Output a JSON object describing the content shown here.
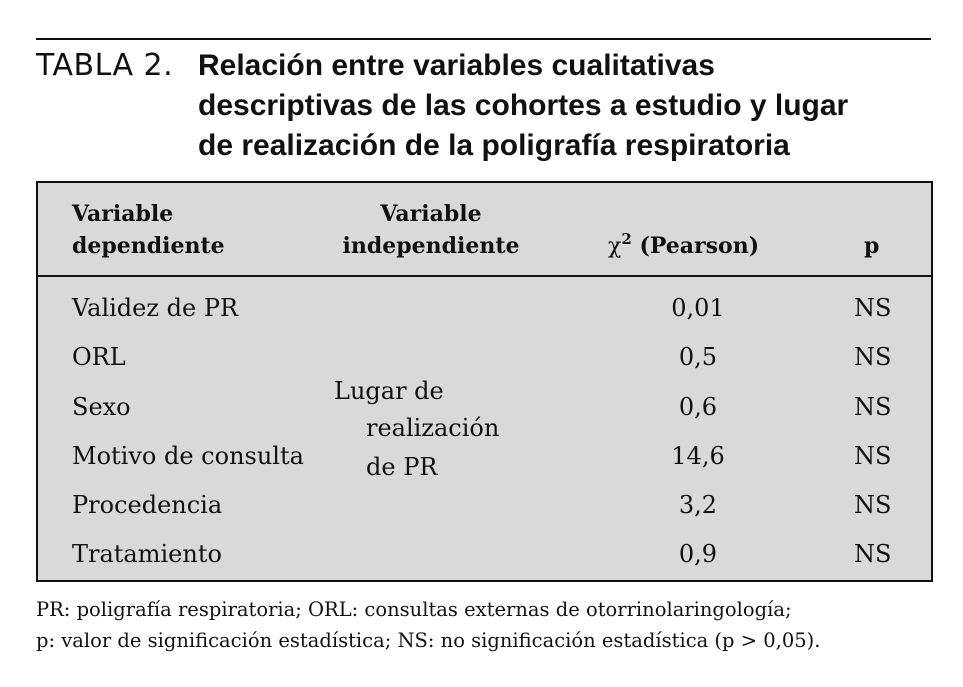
{
  "caption": {
    "label": "TABLA 2.",
    "title_lines": [
      "Relación entre variables cualitativas",
      "descriptivas de las cohortes a estudio y lugar",
      "de realización de la poligrafía respiratoria"
    ]
  },
  "table": {
    "headers": {
      "dependent": [
        "Variable",
        "dependiente"
      ],
      "independent": [
        "Variable",
        "independiente"
      ],
      "chi_symbol": "χ",
      "chi_sup": "2",
      "chi_rest": " (Pearson)",
      "p": "p"
    },
    "independent_value": [
      "Lugar de",
      "realización",
      "de PR"
    ],
    "rows": [
      {
        "dependent": "Validez de PR",
        "chi2": "0,01",
        "p": "NS"
      },
      {
        "dependent": "ORL",
        "chi2": "0,5",
        "p": "NS"
      },
      {
        "dependent": "Sexo",
        "chi2": "0,6",
        "p": "NS"
      },
      {
        "dependent": "Motivo de consulta",
        "chi2": "14,6",
        "p": "NS"
      },
      {
        "dependent": "Procedencia",
        "chi2": "3,2",
        "p": "NS"
      },
      {
        "dependent": "Tratamiento",
        "chi2": "0,9",
        "p": "NS"
      }
    ]
  },
  "footnote": {
    "lines": [
      "PR: poligrafía respiratoria; ORL: consultas externas de otorrinolaringología;",
      "p: valor de significación estadística; NS: no significación estadística (p > 0,05)."
    ]
  }
}
